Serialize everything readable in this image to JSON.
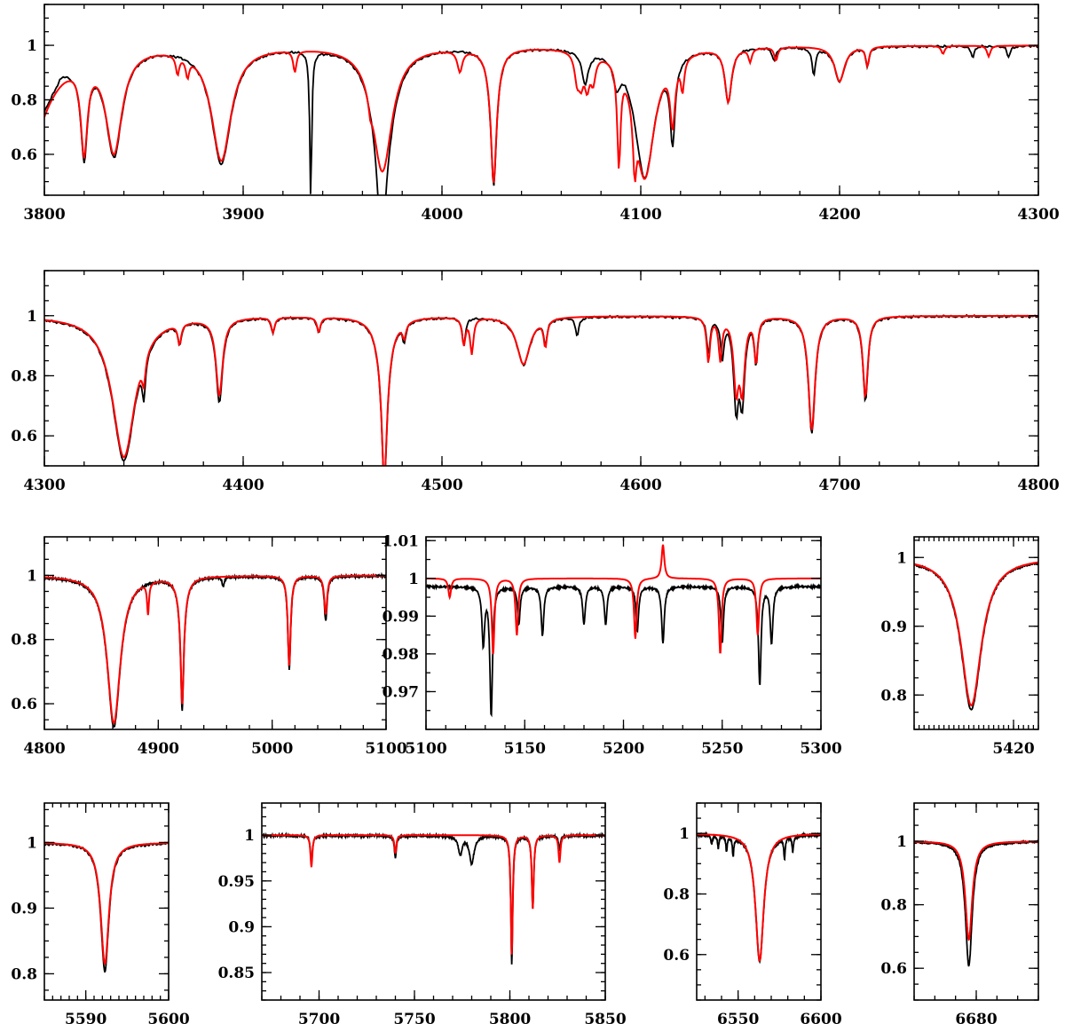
{
  "colors": {
    "observed": "#000000",
    "model": "#ff0000"
  },
  "chart_data": [
    {
      "type": "line",
      "xlim": [
        3800,
        4300
      ],
      "ylim": [
        0.45,
        1.15
      ],
      "xticks": [
        3800,
        3900,
        4000,
        4100,
        4200,
        4300
      ],
      "xminor": 20,
      "yticks": [
        0.6,
        0.8,
        1
      ],
      "yminor": 0.05,
      "xtick_labels": [
        "3800",
        "3900",
        "4000",
        "4100",
        "4200",
        "4300"
      ],
      "ytick_labels": [
        "0.6",
        "0.8",
        "1"
      ],
      "series": [
        {
          "role": "observed",
          "start_value": 0.77,
          "start_width": 12,
          "bump": [
            3809,
            1.02,
            3
          ],
          "lines": [
            [
              3820,
              0.64,
              2
            ],
            [
              3835,
              0.61,
              5
            ],
            [
              3889,
              0.57,
              6
            ],
            [
              3934,
              0.45,
              0.6
            ],
            [
              3970,
              0.46,
              1.5
            ],
            [
              3970,
              0.55,
              6
            ],
            [
              3968,
              0.9,
              1
            ],
            [
              4026,
              0.57,
              1.5
            ],
            [
              4026,
              0.86,
              3
            ],
            [
              4072,
              0.88,
              2
            ],
            [
              4088,
              0.9,
              2
            ],
            [
              4102,
              0.52,
              6
            ],
            [
              4116,
              0.68,
              1.5
            ],
            [
              4144,
              0.8,
              2
            ],
            [
              4167,
              0.95,
              1
            ],
            [
              4187,
              0.9,
              1
            ],
            [
              4200,
              0.87,
              3
            ],
            [
              4214,
              0.93,
              1
            ],
            [
              4267,
              0.96,
              1
            ],
            [
              4285,
              0.96,
              1
            ]
          ]
        },
        {
          "role": "model",
          "start_value": 0.75,
          "start_width": 12,
          "lines": [
            [
              3820,
              0.66,
              2
            ],
            [
              3835,
              0.62,
              5
            ],
            [
              3867,
              0.93,
              1
            ],
            [
              3872,
              0.93,
              1
            ],
            [
              3889,
              0.58,
              6
            ],
            [
              3926,
              0.92,
              1
            ],
            [
              3964,
              0.94,
              1
            ],
            [
              3970,
              0.54,
              6
            ],
            [
              4009,
              0.92,
              1.5
            ],
            [
              4026,
              0.58,
              1.5
            ],
            [
              4026,
              0.86,
              3
            ],
            [
              4068,
              0.9,
              1.5
            ],
            [
              4070,
              0.9,
              1.5
            ],
            [
              4073,
              0.88,
              1.5
            ],
            [
              4076,
              0.9,
              1.5
            ],
            [
              4089,
              0.6,
              1
            ],
            [
              4097,
              0.7,
              1
            ],
            [
              4102,
              0.52,
              6
            ],
            [
              4116,
              0.75,
              1.5
            ],
            [
              4121,
              0.88,
              1
            ],
            [
              4144,
              0.8,
              2
            ],
            [
              4155,
              0.95,
              1
            ],
            [
              4168,
              0.95,
              1
            ],
            [
              4200,
              0.87,
              3
            ],
            [
              4214,
              0.93,
              1
            ],
            [
              4252,
              0.97,
              1
            ],
            [
              4275,
              0.96,
              1
            ]
          ]
        }
      ]
    },
    {
      "type": "line",
      "xlim": [
        4300,
        4800
      ],
      "ylim": [
        0.5,
        1.15
      ],
      "xticks": [
        4300,
        4400,
        4500,
        4600,
        4700,
        4800
      ],
      "xminor": 20,
      "yticks": [
        0.6,
        0.8,
        1
      ],
      "yminor": 0.05,
      "xtick_labels": [
        "4300",
        "4400",
        "4500",
        "4600",
        "4700",
        "4800"
      ],
      "ytick_labels": [
        "0.6",
        "0.8",
        "1"
      ],
      "series": [
        {
          "role": "observed",
          "lines": [
            [
              4340,
              0.52,
              7
            ],
            [
              4350,
              0.85,
              1
            ],
            [
              4368,
              0.93,
              1
            ],
            [
              4388,
              0.72,
              2
            ],
            [
              4415,
              0.95,
              1
            ],
            [
              4438,
              0.95,
              1
            ],
            [
              4471,
              0.52,
              1.5
            ],
            [
              4471,
              0.85,
              4
            ],
            [
              4481,
              0.94,
              1
            ],
            [
              4511,
              0.91,
              1
            ],
            [
              4541,
              0.84,
              4
            ],
            [
              4552,
              0.92,
              1
            ],
            [
              4568,
              0.94,
              1
            ],
            [
              4634,
              0.88,
              1
            ],
            [
              4641,
              0.87,
              1
            ],
            [
              4648,
              0.7,
              1.5
            ],
            [
              4651,
              0.72,
              1.5
            ],
            [
              4658,
              0.85,
              1
            ],
            [
              4686,
              0.61,
              2
            ],
            [
              4713,
              0.72,
              1.5
            ]
          ]
        },
        {
          "role": "model",
          "lines": [
            [
              4340,
              0.53,
              7
            ],
            [
              4350,
              0.9,
              1
            ],
            [
              4368,
              0.93,
              1
            ],
            [
              4388,
              0.74,
              2
            ],
            [
              4415,
              0.95,
              1
            ],
            [
              4438,
              0.95,
              1
            ],
            [
              4471,
              0.53,
              1.5
            ],
            [
              4471,
              0.85,
              4
            ],
            [
              4481,
              0.95,
              1
            ],
            [
              4511,
              0.91,
              1
            ],
            [
              4515,
              0.88,
              1
            ],
            [
              4541,
              0.84,
              4
            ],
            [
              4552,
              0.91,
              1
            ],
            [
              4634,
              0.85,
              1
            ],
            [
              4640,
              0.86,
              1
            ],
            [
              4648,
              0.76,
              1.5
            ],
            [
              4651,
              0.76,
              1.5
            ],
            [
              4658,
              0.85,
              1
            ],
            [
              4686,
              0.62,
              2
            ],
            [
              4713,
              0.73,
              1.5
            ]
          ]
        }
      ]
    },
    {
      "type": "line",
      "xlim": [
        4800,
        5100
      ],
      "ylim": [
        0.52,
        1.12
      ],
      "xticks": [
        4800,
        4900,
        5000,
        5100
      ],
      "xminor": 20,
      "yticks": [
        0.6,
        0.8,
        1
      ],
      "yminor": 0.05,
      "xtick_labels": [
        "4800",
        "4900",
        "5000",
        "5100"
      ],
      "ytick_labels": [
        "0.6",
        "0.8",
        "1"
      ],
      "series": [
        {
          "role": "observed",
          "lines": [
            [
              4861,
              0.53,
              7
            ],
            [
              4921,
              0.65,
              1.5
            ],
            [
              4921,
              0.9,
              4
            ],
            [
              4957,
              0.97,
              1
            ],
            [
              5015,
              0.71,
              1.5
            ],
            [
              5047,
              0.86,
              1.5
            ]
          ]
        },
        {
          "role": "model",
          "lines": [
            [
              4861,
              0.54,
              7
            ],
            [
              4891,
              0.9,
              1
            ],
            [
              4921,
              0.67,
              1.5
            ],
            [
              4921,
              0.9,
              4
            ],
            [
              5015,
              0.72,
              1.5
            ],
            [
              5047,
              0.88,
              1.5
            ]
          ]
        }
      ]
    },
    {
      "type": "line",
      "xlim": [
        5100,
        5300
      ],
      "ylim": [
        0.96,
        1.011
      ],
      "xticks": [
        5100,
        5150,
        5200,
        5250,
        5300
      ],
      "xminor": 10,
      "yticks": [
        0.97,
        0.98,
        0.99,
        1,
        1.01
      ],
      "yminor": 0.005,
      "xtick_labels": [
        "5100",
        "5150",
        "5200",
        "5250",
        "5300"
      ],
      "ytick_labels": [
        "0.97",
        "0.98",
        "0.99",
        "1",
        "1.01"
      ],
      "series": [
        {
          "role": "observed",
          "continuum": 0.998,
          "lines": [
            [
              5129,
              0.985,
              0.8
            ],
            [
              5133,
              0.966,
              0.8
            ],
            [
              5147,
              0.99,
              0.8
            ],
            [
              5159,
              0.987,
              0.8
            ],
            [
              5180,
              0.99,
              0.8
            ],
            [
              5191,
              0.99,
              0.8
            ],
            [
              5207,
              0.988,
              0.8
            ],
            [
              5220,
              0.985,
              0.8
            ],
            [
              5250,
              0.985,
              0.8
            ],
            [
              5269,
              0.974,
              0.8
            ],
            [
              5275,
              0.985,
              0.8
            ]
          ]
        },
        {
          "role": "model",
          "lines": [
            [
              5112,
              0.995,
              0.8
            ],
            [
              5134,
              0.98,
              0.8
            ],
            [
              5146,
              0.985,
              0.8
            ],
            [
              5206,
              0.984,
              0.8
            ],
            [
              5249,
              0.98,
              0.8
            ],
            [
              5268,
              0.985,
              0.8
            ]
          ],
          "emission": [
            [
              5220,
              1.009,
              0.8
            ]
          ]
        }
      ]
    },
    {
      "type": "line",
      "xlim": [
        5400,
        5425
      ],
      "ylim": [
        0.75,
        1.03
      ],
      "xticks": [
        5420
      ],
      "xminor": 1,
      "yticks": [
        0.8,
        0.9,
        1
      ],
      "yminor": 0.025,
      "xtick_labels": [
        "5420"
      ],
      "ytick_labels": [
        "0.8",
        "0.9",
        "1"
      ],
      "series": [
        {
          "role": "observed",
          "lines": [
            [
              5411.5,
              0.78,
              2.5
            ]
          ]
        },
        {
          "role": "model",
          "lines": [
            [
              5411.5,
              0.785,
              2.5
            ]
          ]
        }
      ]
    },
    {
      "type": "line",
      "xlim": [
        5585,
        5600
      ],
      "ylim": [
        0.76,
        1.06
      ],
      "xticks": [
        5590,
        5600
      ],
      "xminor": 1,
      "yticks": [
        0.8,
        0.9,
        1
      ],
      "yminor": 0.025,
      "xtick_labels": [
        "5590",
        "5600"
      ],
      "ytick_labels": [
        "0.8",
        "0.9",
        "1"
      ],
      "series": [
        {
          "role": "observed",
          "lines": [
            [
              5592.3,
              0.805,
              0.6
            ]
          ]
        },
        {
          "role": "model",
          "lines": [
            [
              5592.3,
              0.815,
              0.6
            ]
          ]
        }
      ]
    },
    {
      "type": "line",
      "xlim": [
        5670,
        5850
      ],
      "ylim": [
        0.82,
        1.035
      ],
      "xticks": [
        5700,
        5750,
        5800,
        5850
      ],
      "xminor": 10,
      "yticks": [
        0.85,
        0.9,
        0.95,
        1
      ],
      "yminor": 0.01,
      "xtick_labels": [
        "5700",
        "5750",
        "5800",
        "5850"
      ],
      "ytick_labels": [
        "0.85",
        "0.9",
        "0.95",
        "1"
      ],
      "series": [
        {
          "role": "observed",
          "lines": [
            [
              5696,
              0.97,
              0.6
            ],
            [
              5740,
              0.975,
              0.6
            ],
            [
              5774,
              0.98,
              1.2
            ],
            [
              5780,
              0.97,
              1.5
            ],
            [
              5801,
              0.86,
              0.6
            ],
            [
              5812,
              0.92,
              0.6
            ],
            [
              5826,
              0.985,
              0.6
            ]
          ]
        },
        {
          "role": "model",
          "lines": [
            [
              5696,
              0.965,
              0.6
            ],
            [
              5740,
              0.98,
              0.6
            ],
            [
              5801,
              0.87,
              0.6
            ],
            [
              5812,
              0.92,
              0.6
            ],
            [
              5826,
              0.97,
              0.6
            ]
          ]
        }
      ]
    },
    {
      "type": "line",
      "xlim": [
        6525,
        6600
      ],
      "ylim": [
        0.45,
        1.1
      ],
      "xticks": [
        6550,
        6600
      ],
      "xminor": 10,
      "yticks": [
        0.6,
        0.8,
        1
      ],
      "yminor": 0.05,
      "xtick_labels": [
        "6550",
        "6600"
      ],
      "ytick_labels": [
        "0.6",
        "0.8",
        "1"
      ],
      "series": [
        {
          "role": "observed",
          "lines": [
            [
              6563,
              0.58,
              3
            ],
            [
              6534,
              0.97,
              0.5
            ],
            [
              6538,
              0.96,
              0.5
            ],
            [
              6543,
              0.95,
              0.5
            ],
            [
              6547,
              0.94,
              0.5
            ],
            [
              6578,
              0.93,
              0.5
            ],
            [
              6583,
              0.95,
              0.5
            ]
          ]
        },
        {
          "role": "model",
          "lines": [
            [
              6563,
              0.58,
              3
            ]
          ]
        }
      ]
    },
    {
      "type": "line",
      "xlim": [
        6665,
        6695
      ],
      "ylim": [
        0.5,
        1.12
      ],
      "xticks": [
        6680
      ],
      "xminor": 5,
      "yticks": [
        0.6,
        0.8,
        1
      ],
      "yminor": 0.05,
      "xtick_labels": [
        "6680"
      ],
      "ytick_labels": [
        "0.6",
        "0.8",
        "1"
      ],
      "series": [
        {
          "role": "observed",
          "lines": [
            [
              6678.2,
              0.61,
              1
            ]
          ]
        },
        {
          "role": "model",
          "lines": [
            [
              6678.2,
              0.69,
              1
            ]
          ]
        }
      ]
    }
  ]
}
